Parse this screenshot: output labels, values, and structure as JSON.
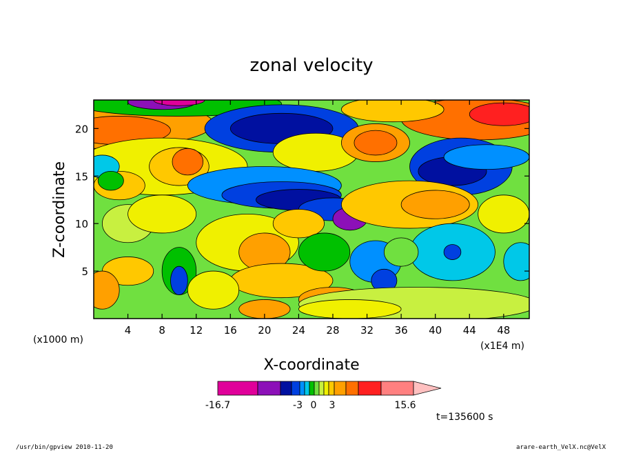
{
  "chart_data": {
    "type": "heatmap",
    "title": "zonal velocity",
    "xlabel": "X-coordinate",
    "ylabel": "Z-coordinate",
    "x_units_left": "(x1000 m)",
    "x_units_right": "(x1E4 m)",
    "xlim": [
      0,
      51
    ],
    "ylim": [
      0,
      23
    ],
    "x_ticks": [
      4,
      8,
      12,
      16,
      20,
      24,
      28,
      32,
      36,
      40,
      44,
      48
    ],
    "y_ticks": [
      5,
      10,
      15,
      20
    ],
    "colorbar": {
      "colors": [
        "#e0009a",
        "#8c10b8",
        "#0010a0",
        "#0040e0",
        "#0090ff",
        "#00c8e8",
        "#00c000",
        "#70e040",
        "#c8f040",
        "#f0f000",
        "#ffc800",
        "#ffa000",
        "#ff7000",
        "#ff2020",
        "#ff8080",
        "#ffc0c0"
      ],
      "labels": [
        "-16.7",
        "-3",
        "0",
        "3",
        "15.6"
      ],
      "value_range": [
        -16.7,
        15.6
      ]
    },
    "grid": false,
    "legend": "colorbar-bottom"
  },
  "time_label": "t=135600 s",
  "footer_left": "/usr/bin/gpview  2010-11-20",
  "footer_right": "arare-earth_VelX.nc@VelX"
}
